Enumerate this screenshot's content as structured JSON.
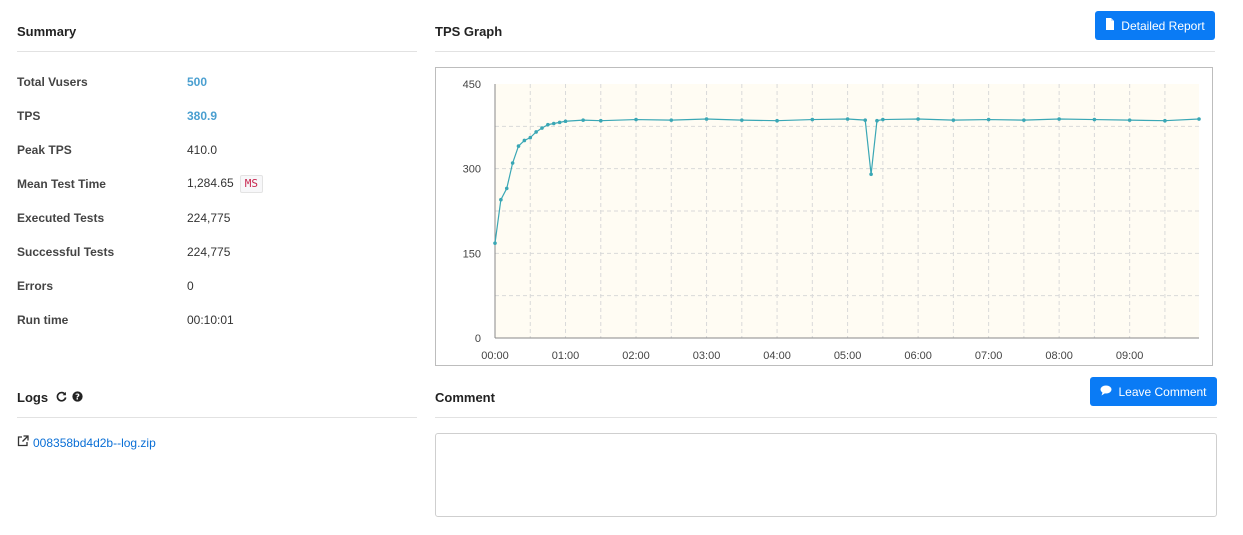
{
  "summary": {
    "title": "Summary",
    "stats": [
      {
        "label": "Total Vusers",
        "value": "500"
      },
      {
        "label": "TPS",
        "value": "380.9"
      },
      {
        "label": "Peak TPS",
        "value": "410.0"
      },
      {
        "label": "Mean Test Time",
        "value": "1,284.65",
        "unit": "MS"
      },
      {
        "label": "Executed Tests",
        "value": "224,775"
      },
      {
        "label": "Successful Tests",
        "value": "224,775"
      },
      {
        "label": "Errors",
        "value": "0"
      },
      {
        "label": "Run time",
        "value": "00:10:01"
      }
    ]
  },
  "tps_graph": {
    "title": "TPS Graph",
    "detailed_report_label": "Detailed Report"
  },
  "logs": {
    "title": "Logs",
    "file_name": "008358bd4d2b--log.zip"
  },
  "comment": {
    "title": "Comment",
    "leave_comment_label": "Leave Comment",
    "text": ""
  },
  "colors": {
    "accent": "#0a7bf5",
    "highlight_value": "#4a9fd0",
    "series": "#3aa7b5",
    "plot_background": "#fffcf3"
  },
  "chart_data": {
    "type": "line",
    "xlabel": "",
    "ylabel": "",
    "ylim": [
      0,
      450
    ],
    "yticks": [
      "0",
      "150",
      "300",
      "450"
    ],
    "xlim": [
      "00:00",
      "09:59"
    ],
    "xticks": [
      "00:00",
      "01:00",
      "02:00",
      "03:00",
      "04:00",
      "05:00",
      "06:00",
      "07:00",
      "08:00",
      "09:00"
    ],
    "grid": true,
    "series": [
      {
        "name": "",
        "x": [
          "00:00",
          "00:05",
          "00:10",
          "00:15",
          "00:20",
          "00:25",
          "00:30",
          "00:35",
          "00:40",
          "00:45",
          "00:50",
          "00:55",
          "01:00",
          "01:15",
          "01:30",
          "02:00",
          "02:30",
          "03:00",
          "03:30",
          "04:00",
          "04:30",
          "05:00",
          "05:15",
          "05:20",
          "05:25",
          "05:30",
          "06:00",
          "06:30",
          "07:00",
          "07:30",
          "08:00",
          "08:30",
          "09:00",
          "09:30",
          "09:59"
        ],
        "y": [
          168,
          245,
          265,
          310,
          340,
          350,
          355,
          365,
          372,
          378,
          380,
          382,
          384,
          386,
          385,
          387,
          386,
          388,
          386,
          385,
          387,
          388,
          386,
          290,
          385,
          387,
          388,
          386,
          387,
          386,
          388,
          387,
          386,
          385,
          388
        ]
      }
    ]
  }
}
